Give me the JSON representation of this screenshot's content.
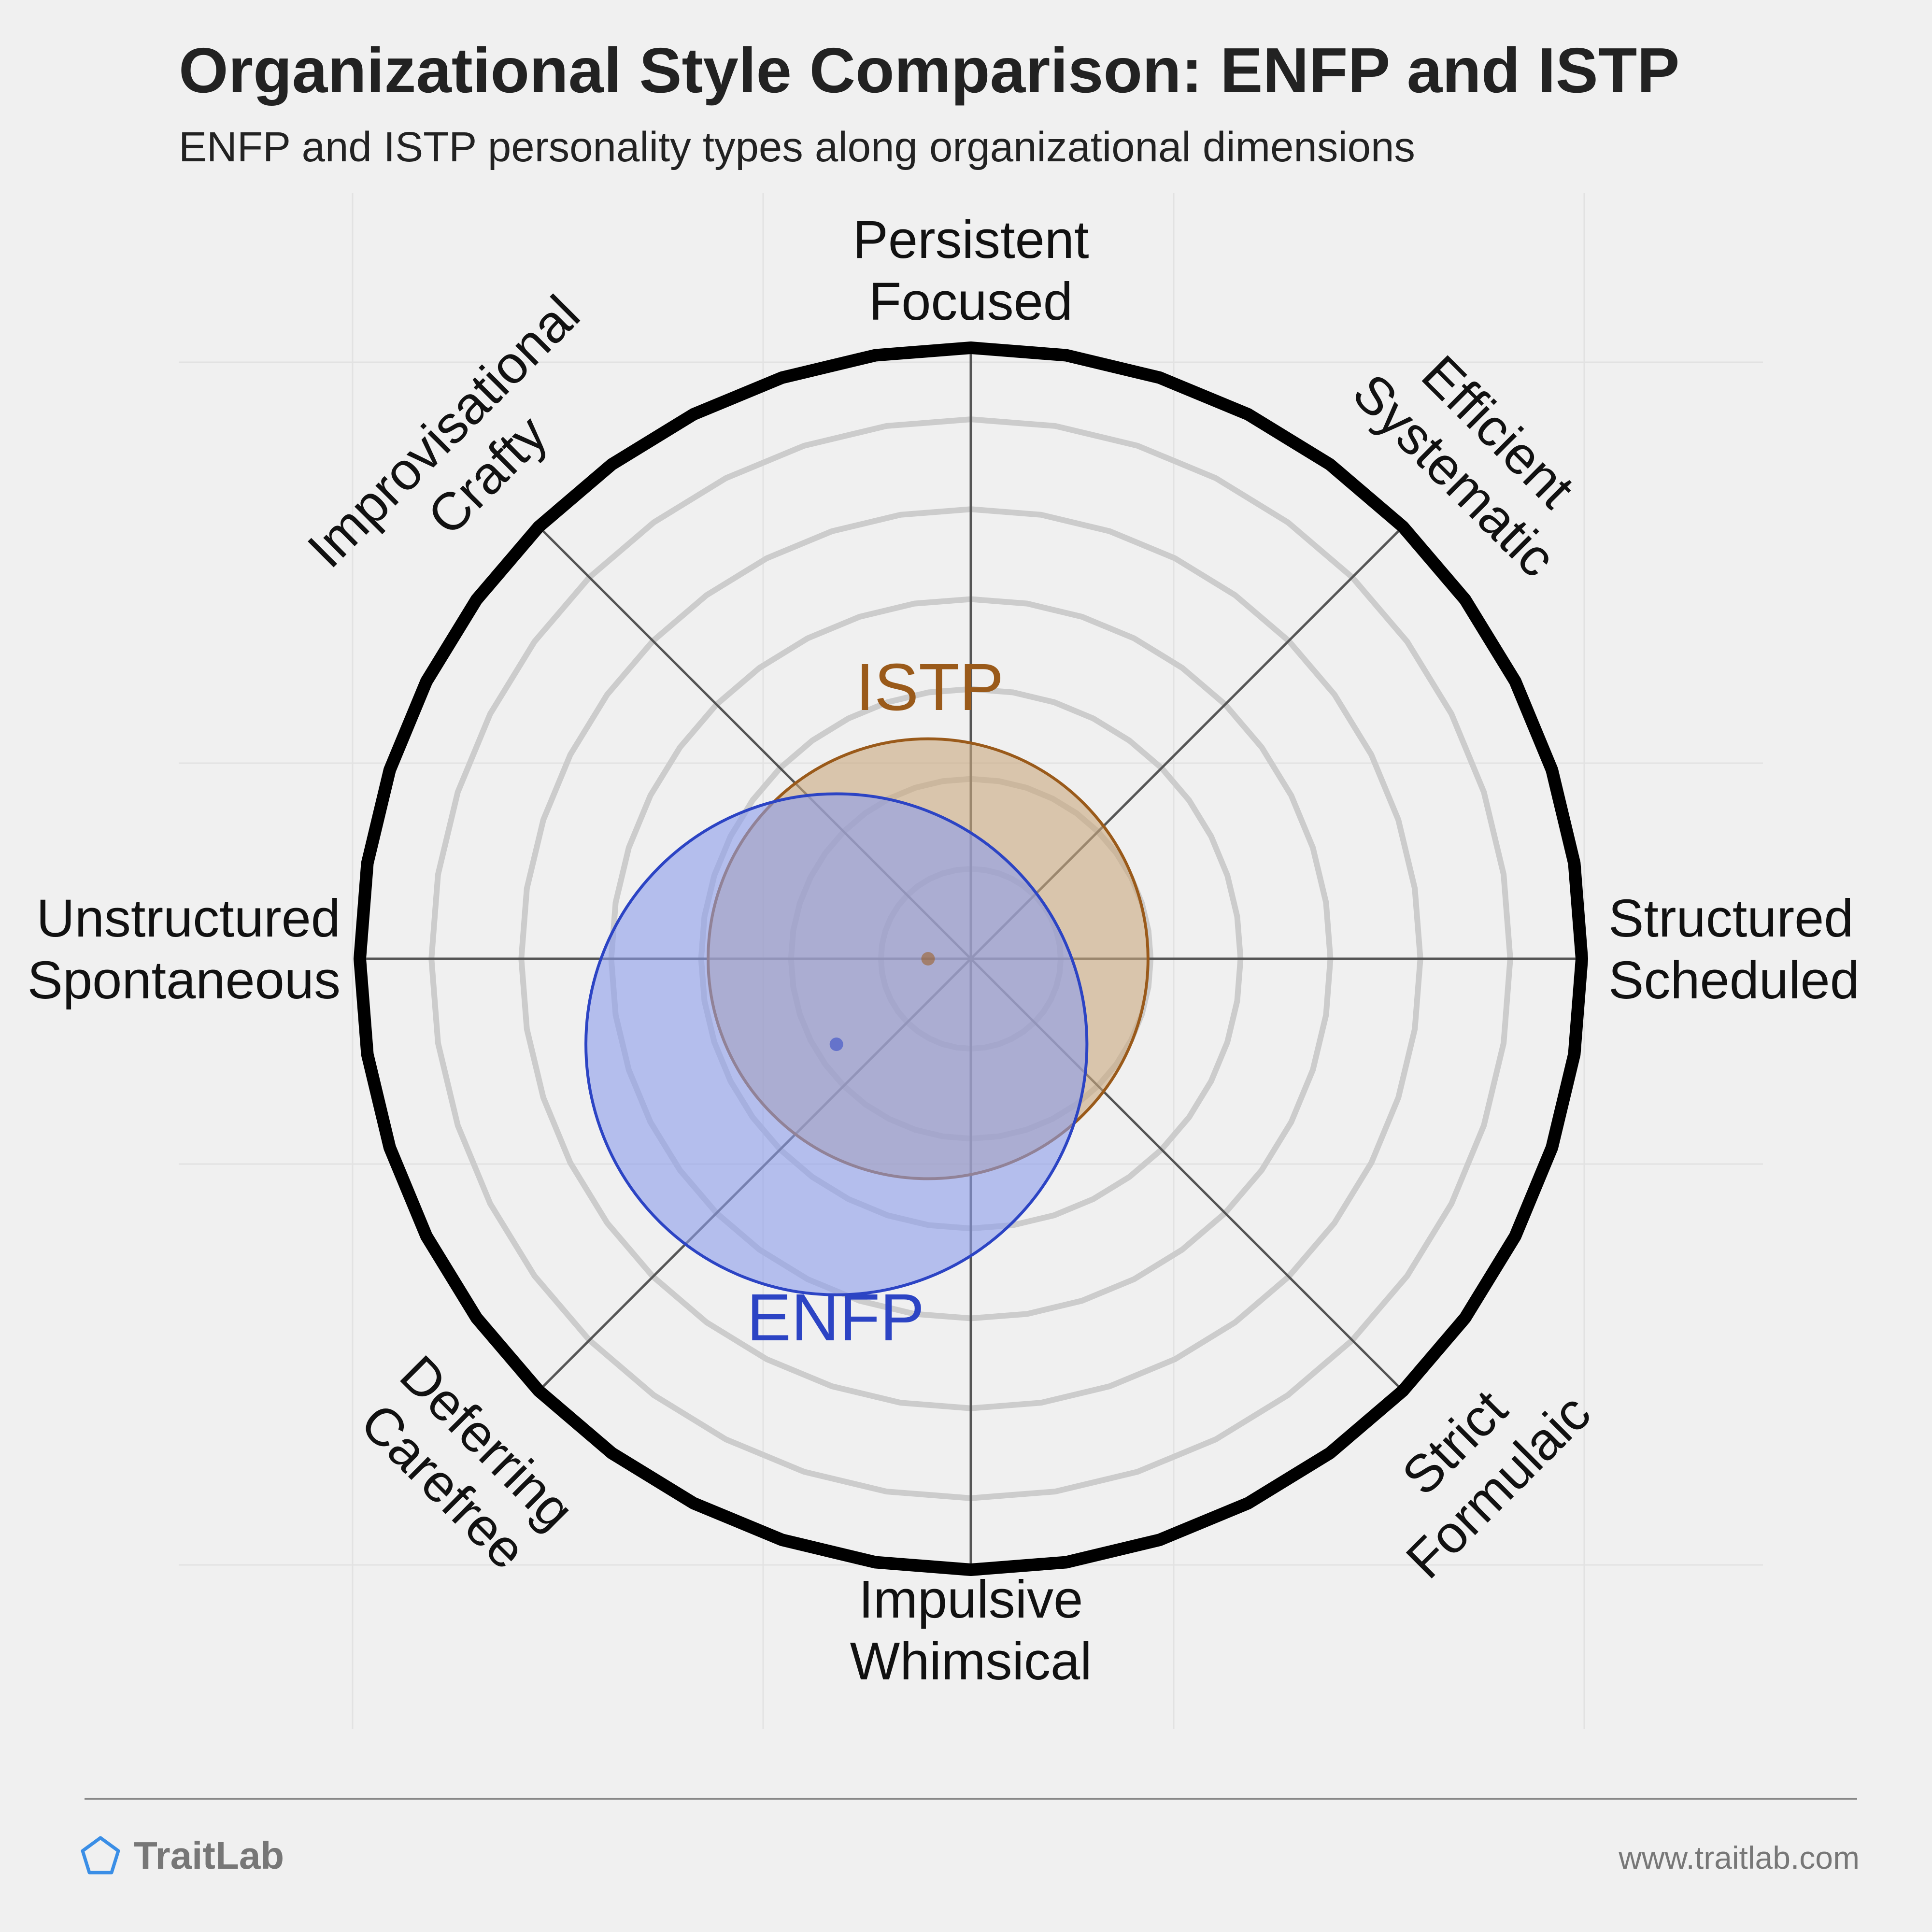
{
  "title": "Organizational Style Comparison: ENFP and ISTP",
  "subtitle": "ENFP and ISTP personality types along organizational dimensions",
  "footer": {
    "brand": "TraitLab",
    "url": "www.traitlab.com"
  },
  "chart_data": {
    "type": "radar-overlap",
    "axes": [
      {
        "lines": [
          "Persistent",
          "Focused"
        ],
        "angle": 90
      },
      {
        "lines": [
          "Efficient",
          "Systematic"
        ],
        "angle": 45
      },
      {
        "lines": [
          "Structured",
          "Scheduled"
        ],
        "angle": 0
      },
      {
        "lines": [
          "Strict",
          "Formulaic"
        ],
        "angle": -45
      },
      {
        "lines": [
          "Impulsive",
          "Whimsical"
        ],
        "angle": -90
      },
      {
        "lines": [
          "Deferring",
          "Carefree"
        ],
        "angle": -135
      },
      {
        "lines": [
          "Unstructured",
          "Spontaneous"
        ],
        "angle": 180
      },
      {
        "lines": [
          "Improvisational",
          "Crafty"
        ],
        "angle": 135
      }
    ],
    "rings": 6,
    "grid": true,
    "series": [
      {
        "name": "ISTP",
        "center": [
          -0.07,
          0.0
        ],
        "radius": 0.36,
        "color": "#9a5a1a",
        "fill": "#c9a97e"
      },
      {
        "name": "ENFP",
        "center": [
          -0.22,
          -0.14
        ],
        "radius": 0.41,
        "color": "#2c44c4",
        "fill": "#8c9ceb"
      }
    ]
  }
}
